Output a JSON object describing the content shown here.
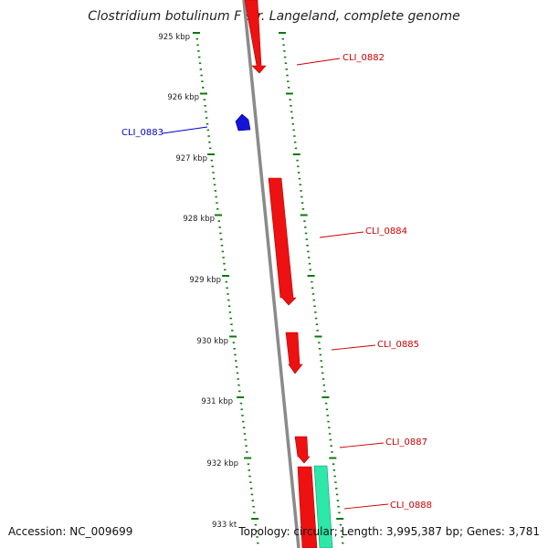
{
  "title": "Clostridium botulinum F str. Langeland, complete genome",
  "footer": {
    "accession": "Accession: NC_009699",
    "stats": "Topology: circular; Length: 3,995,387 bp; Genes: 3,781"
  },
  "ticks": [
    "925 kbp",
    "926 kbp",
    "927 kbp",
    "928 kbp",
    "929 kbp",
    "930 kbp",
    "931 kbp",
    "932 kbp",
    "933 kt"
  ],
  "genes": [
    {
      "name": "CLI_0882",
      "strand": "reverse",
      "color": "#ee1111"
    },
    {
      "name": "CLI_0883",
      "strand": "forward",
      "color": "#1414d8"
    },
    {
      "name": "CLI_0884",
      "strand": "reverse",
      "color": "#ee1111"
    },
    {
      "name": "CLI_0885",
      "strand": "reverse",
      "color": "#ee1111"
    },
    {
      "name": "CLI_0887",
      "strand": "reverse",
      "color": "#ee1111"
    },
    {
      "name": "CLI_0888",
      "strand": "reverse",
      "color": "#ee1111"
    },
    {
      "name": "",
      "strand": "reverse",
      "color": "#2de8a8"
    }
  ],
  "colors": {
    "backbone": "#8a8a8a",
    "ticks": "#0a7a0a",
    "reverse_label": "#cc0000",
    "forward_label": "#0000cc"
  }
}
